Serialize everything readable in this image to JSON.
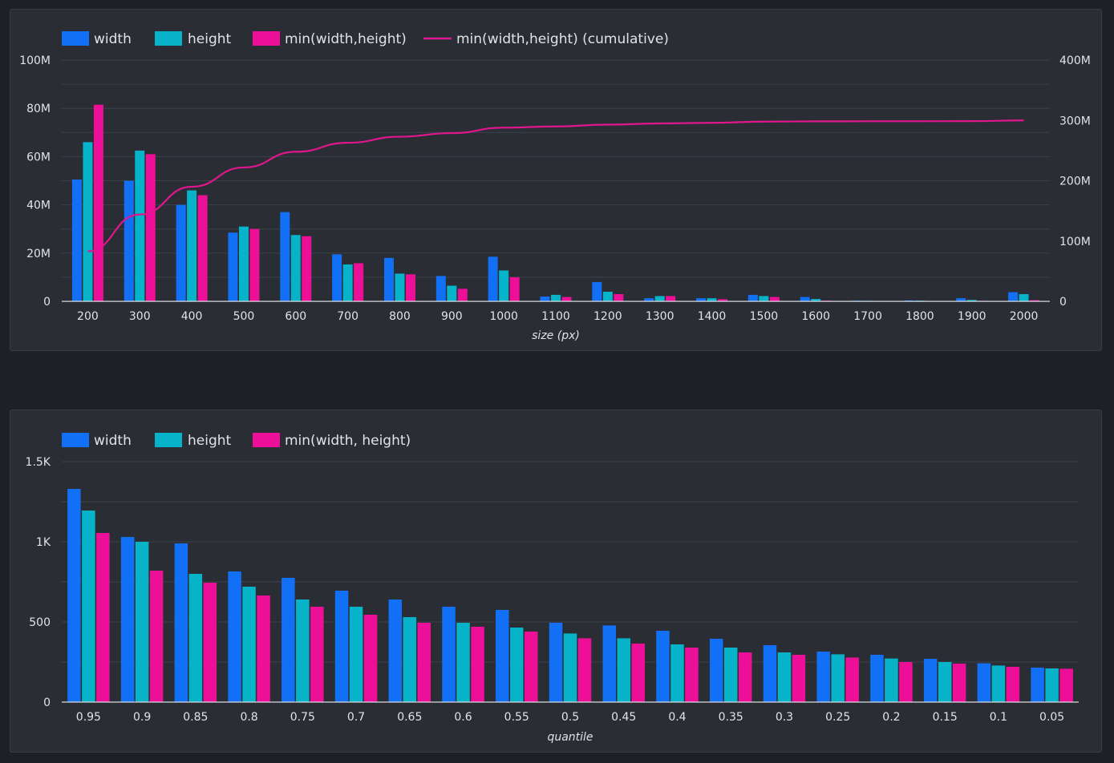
{
  "colors": {
    "width": "#1170f5",
    "height": "#06b3c8",
    "min": "#ee0f98",
    "line": "#e0168d"
  },
  "chart_data": [
    {
      "type": "bar",
      "categories": [
        "200",
        "300",
        "400",
        "500",
        "600",
        "700",
        "800",
        "900",
        "1000",
        "1100",
        "1200",
        "1300",
        "1400",
        "1500",
        "1600",
        "1700",
        "1800",
        "1900",
        "2000"
      ],
      "series": [
        {
          "name": "width",
          "values": [
            50.5,
            50,
            40,
            28.5,
            37,
            19.5,
            18,
            10.5,
            18.5,
            2,
            8,
            1.3,
            1.3,
            2.7,
            1.8,
            0.3,
            0.4,
            1.3,
            3.8
          ]
        },
        {
          "name": "height",
          "values": [
            66,
            62.5,
            46,
            31,
            27.5,
            15.3,
            11.5,
            6.5,
            12.8,
            2.7,
            4,
            2.2,
            1.3,
            2.2,
            1,
            0.2,
            0.3,
            0.6,
            3
          ]
        },
        {
          "name": "min(width,height)",
          "values": [
            81.5,
            61,
            44,
            30,
            27,
            15.8,
            11.2,
            5.2,
            10,
            1.8,
            3,
            2.2,
            0.9,
            1.8,
            0.3,
            0.1,
            0.1,
            0.2,
            0.5
          ]
        }
      ],
      "line_series": {
        "name": "min(width,height) (cumulative)",
        "axis": "right",
        "values": [
          83,
          144,
          190,
          222,
          248,
          263,
          273,
          279,
          288,
          290,
          293,
          295,
          296,
          298,
          298.5,
          298.6,
          298.7,
          298.8,
          300
        ]
      },
      "xlabel": "size (px)",
      "ylim": [
        0,
        100
      ],
      "yticks": [
        "0",
        "20M",
        "40M",
        "60M",
        "80M",
        "100M"
      ],
      "y2lim": [
        0,
        400
      ],
      "y2ticks": [
        "0",
        "100M",
        "200M",
        "300M",
        "400M"
      ],
      "grid": true,
      "legend": "top-left"
    },
    {
      "type": "bar",
      "categories": [
        "0.95",
        "0.9",
        "0.85",
        "0.8",
        "0.75",
        "0.7",
        "0.65",
        "0.6",
        "0.55",
        "0.5",
        "0.45",
        "0.4",
        "0.35",
        "0.3",
        "0.25",
        "0.2",
        "0.15",
        "0.1",
        "0.05"
      ],
      "series": [
        {
          "name": "width",
          "values": [
            1330,
            1030,
            990,
            815,
            775,
            695,
            640,
            595,
            575,
            495,
            478,
            445,
            395,
            355,
            315,
            295,
            270,
            242,
            215
          ]
        },
        {
          "name": "height",
          "values": [
            1195,
            1000,
            800,
            720,
            640,
            595,
            530,
            495,
            465,
            428,
            398,
            360,
            340,
            310,
            298,
            272,
            250,
            228,
            210
          ]
        },
        {
          "name": "min(width, height)",
          "values": [
            1055,
            820,
            745,
            665,
            595,
            545,
            495,
            470,
            440,
            398,
            365,
            340,
            310,
            295,
            278,
            250,
            240,
            220,
            208
          ]
        }
      ],
      "xlabel": "quantile",
      "ylim": [
        0,
        1500
      ],
      "yticks": [
        "0",
        "500",
        "1K",
        "1.5K"
      ],
      "grid": true,
      "legend": "top-left"
    }
  ]
}
